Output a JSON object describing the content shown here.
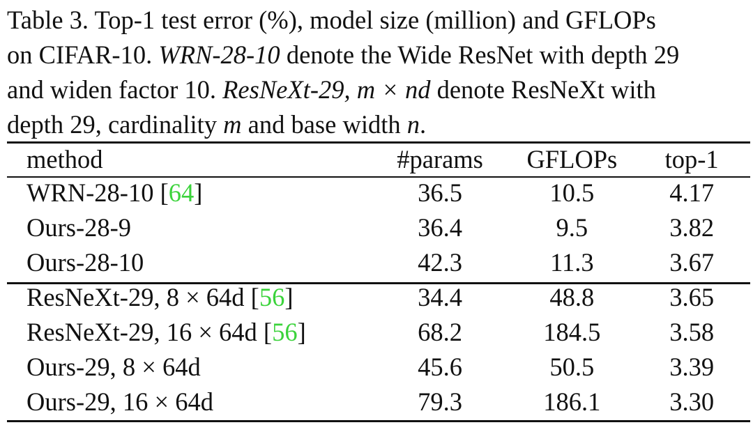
{
  "caption": {
    "line1": "Table 3. Top-1 test error (%), model size (million) and GFLOPs",
    "line2_a": "on CIFAR-10. ",
    "line2_b": "WRN-28-10",
    "line2_c": " denote the Wide ResNet with depth 29",
    "line3_a": "and widen factor 10. ",
    "line3_b": "ResNeXt-29,",
    "line3_c": " m × nd",
    "line3_d": " denote ResNeXt with",
    "line4_a": "depth 29, cardinality ",
    "line4_b": "m",
    "line4_c": " and base width ",
    "line4_d": "n",
    "line4_e": "."
  },
  "table": {
    "headers": [
      "method",
      "#params",
      "GFLOPs",
      "top-1"
    ],
    "group1": [
      {
        "method": "WRN-28-10 [",
        "cite": "64",
        "method_end": "]",
        "params": "36.5",
        "gflops": "10.5",
        "top1": "4.17"
      },
      {
        "method": "Ours-28-9",
        "cite": "",
        "method_end": "",
        "params": "36.4",
        "gflops": "9.5",
        "top1": "3.82"
      },
      {
        "method": "Ours-28-10",
        "cite": "",
        "method_end": "",
        "params": "42.3",
        "gflops": "11.3",
        "top1": "3.67"
      }
    ],
    "group2": [
      {
        "method": "ResNeXt-29, 8 × 64d [",
        "cite": "56",
        "method_end": "]",
        "params": "34.4",
        "gflops": "48.8",
        "top1": "3.65"
      },
      {
        "method": "ResNeXt-29, 16 × 64d [",
        "cite": "56",
        "method_end": "]",
        "params": "68.2",
        "gflops": "184.5",
        "top1": "3.58"
      },
      {
        "method": "Ours-29, 8 × 64d",
        "cite": "",
        "method_end": "",
        "params": "45.6",
        "gflops": "50.5",
        "top1": "3.39"
      },
      {
        "method": "Ours-29, 16 × 64d",
        "cite": "",
        "method_end": "",
        "params": "79.3",
        "gflops": "186.1",
        "top1": "3.30"
      }
    ]
  },
  "colors": {
    "citation": "#3bd33b",
    "text": "#111111"
  }
}
